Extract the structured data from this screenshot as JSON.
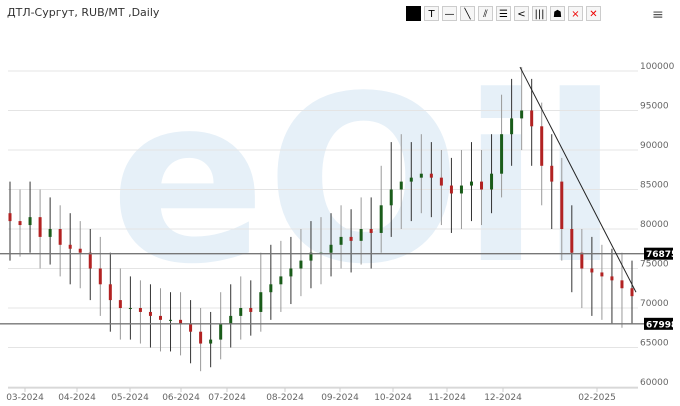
{
  "header": {
    "title": "ДТЛ-Сургут, RUB/MT ,Daily",
    "menu_icon": "hamburger-icon"
  },
  "toolbar": [
    {
      "name": "color-swatch",
      "label": ""
    },
    {
      "name": "text-tool",
      "label": "T"
    },
    {
      "name": "horizontal-line-tool",
      "label": "—"
    },
    {
      "name": "trend-line-tool",
      "label": "╲"
    },
    {
      "name": "parallel-lines-tool",
      "label": "⫽"
    },
    {
      "name": "horizontal-lines-tool",
      "label": "☰"
    },
    {
      "name": "fan-tool",
      "label": "<"
    },
    {
      "name": "vertical-lines-tool",
      "label": "|||"
    },
    {
      "name": "stack-tool",
      "label": "☗"
    },
    {
      "name": "delete-tool",
      "label": "×"
    },
    {
      "name": "delete-all-tool",
      "label": "✕"
    }
  ],
  "colors": {
    "up": "#1a5c1a",
    "down": "#b22222",
    "wick": "#333333",
    "tag_bg": "#000000"
  },
  "chart_data": {
    "type": "candlestick",
    "title": "ДТЛ-Сургут, RUB/MT ,Daily",
    "ylim": [
      60000,
      100000
    ],
    "yticks": [
      60000,
      65000,
      70000,
      75000,
      80000,
      85000,
      90000,
      95000,
      100000
    ],
    "xticks": [
      "03-2024",
      "04-2024",
      "05-2024",
      "06-2024",
      "07-2024",
      "08-2024",
      "09-2024",
      "10-2024",
      "11-2024",
      "12-2024",
      "02-2025"
    ],
    "grid": true,
    "horizontal_lines": [
      76875,
      67998
    ],
    "trend_line": [
      [
        100500,
        "12-2024"
      ],
      [
        72000,
        "end"
      ]
    ],
    "ohlc": [
      [
        82000,
        86000,
        76000,
        81000
      ],
      [
        81000,
        85000,
        76500,
        80500
      ],
      [
        80500,
        86000,
        77000,
        81500
      ],
      [
        81500,
        85000,
        75000,
        79000
      ],
      [
        79000,
        84000,
        75500,
        80000
      ],
      [
        80000,
        83000,
        74000,
        78000
      ],
      [
        78000,
        82000,
        73000,
        77500
      ],
      [
        77500,
        81000,
        72500,
        77000
      ],
      [
        77000,
        80000,
        71000,
        75000
      ],
      [
        75000,
        79000,
        69000,
        73000
      ],
      [
        73000,
        77000,
        67000,
        71000
      ],
      [
        71000,
        75000,
        66000,
        70000
      ],
      [
        70000,
        74000,
        66000,
        70000
      ],
      [
        70000,
        73500,
        65500,
        69500
      ],
      [
        69500,
        73000,
        65000,
        69000
      ],
      [
        69000,
        72500,
        64500,
        68500
      ],
      [
        68500,
        72000,
        64500,
        68500
      ],
      [
        68500,
        72000,
        64000,
        68000
      ],
      [
        68000,
        71000,
        63000,
        67000
      ],
      [
        67000,
        70000,
        62000,
        65500
      ],
      [
        65500,
        69500,
        62500,
        66000
      ],
      [
        66000,
        72000,
        63500,
        68000
      ],
      [
        68000,
        73000,
        65000,
        69000
      ],
      [
        69000,
        74000,
        66000,
        70000
      ],
      [
        70000,
        73500,
        66500,
        69500
      ],
      [
        69500,
        77000,
        67000,
        72000
      ],
      [
        72000,
        78000,
        68500,
        73000
      ],
      [
        73000,
        78500,
        69500,
        74000
      ],
      [
        74000,
        79000,
        70500,
        75000
      ],
      [
        75000,
        80000,
        71500,
        76000
      ],
      [
        76000,
        81000,
        72500,
        77000
      ],
      [
        77000,
        81500,
        73000,
        77000
      ],
      [
        77000,
        82000,
        74000,
        78000
      ],
      [
        78000,
        83000,
        75000,
        79000
      ],
      [
        79000,
        82500,
        74500,
        78500
      ],
      [
        78500,
        84000,
        75500,
        80000
      ],
      [
        80000,
        84000,
        75000,
        79500
      ],
      [
        79500,
        88000,
        77000,
        83000
      ],
      [
        83000,
        91000,
        79000,
        85000
      ],
      [
        85000,
        92000,
        80000,
        86000
      ],
      [
        86000,
        91000,
        81000,
        86500
      ],
      [
        86500,
        92000,
        82000,
        87000
      ],
      [
        87000,
        91000,
        81500,
        86500
      ],
      [
        86500,
        90000,
        80500,
        85500
      ],
      [
        85500,
        89000,
        79500,
        84500
      ],
      [
        84500,
        90000,
        80000,
        85500
      ],
      [
        85500,
        91000,
        81000,
        86000
      ],
      [
        86000,
        90000,
        80500,
        85000
      ],
      [
        85000,
        92000,
        82000,
        87000
      ],
      [
        87000,
        97000,
        84000,
        92000
      ],
      [
        92000,
        99000,
        88000,
        94000
      ],
      [
        94000,
        100500,
        90000,
        95000
      ],
      [
        95000,
        99000,
        88000,
        93000
      ],
      [
        93000,
        96000,
        83000,
        88000
      ],
      [
        88000,
        92000,
        80000,
        86000
      ],
      [
        86000,
        89000,
        76000,
        80000
      ],
      [
        80000,
        83000,
        72000,
        77000
      ],
      [
        77000,
        80000,
        70000,
        75000
      ],
      [
        75000,
        79000,
        69000,
        74500
      ],
      [
        74500,
        78000,
        68500,
        74000
      ],
      [
        74000,
        77500,
        68000,
        73500
      ],
      [
        73500,
        77000,
        67500,
        72500
      ],
      [
        72500,
        76000,
        68000,
        71500
      ]
    ]
  }
}
